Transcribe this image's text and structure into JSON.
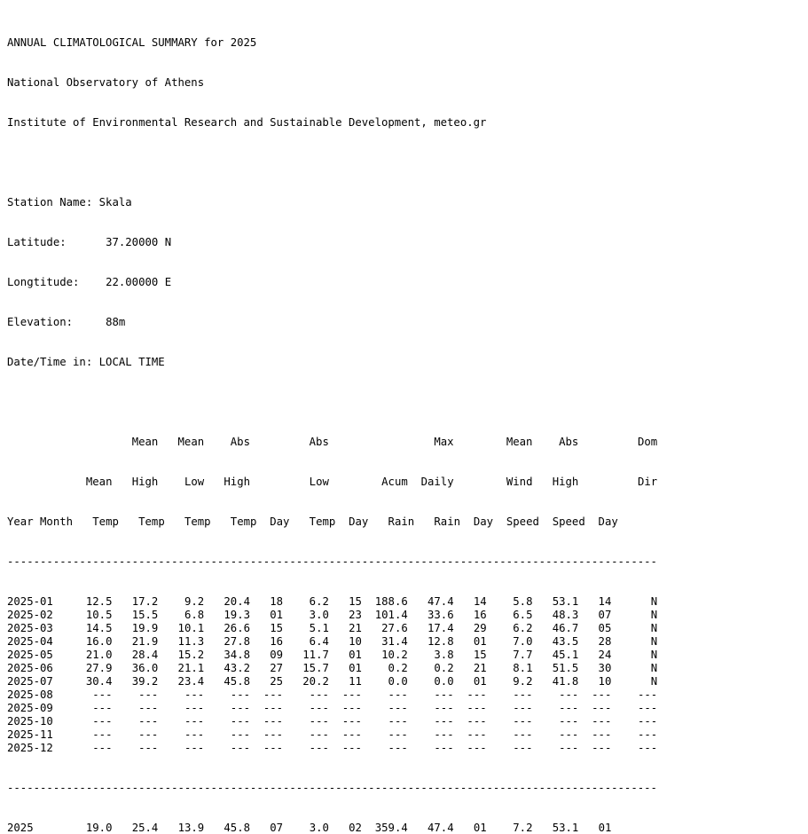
{
  "header": {
    "title": "ANNUAL CLIMATOLOGICAL SUMMARY for 2025",
    "org1": "National Observatory of Athens",
    "org2": "Institute of Environmental Research and Sustainable Development, meteo.gr"
  },
  "station": {
    "name": "Skala",
    "latitude": "37.20000 N",
    "longitude": "22.00000 E",
    "elevation": "88m",
    "datetime": "LOCAL TIME"
  },
  "station_labels": {
    "name": "Station Name:",
    "latitude": "Latitude:",
    "longitude": "Longtitude:",
    "elevation": "Elevation:",
    "datetime": "Date/Time in:"
  },
  "columns": [
    [
      "",
      "",
      "Year Month"
    ],
    [
      "",
      "Mean",
      "Temp"
    ],
    [
      "Mean",
      "High",
      "Temp"
    ],
    [
      "Mean",
      "Low",
      "Temp"
    ],
    [
      "Abs",
      "High",
      "Temp"
    ],
    [
      "",
      "",
      "Day"
    ],
    [
      "Abs",
      "Low",
      "Temp"
    ],
    [
      "",
      "",
      "Day"
    ],
    [
      "",
      "Acum",
      "Rain"
    ],
    [
      "Max",
      "Daily",
      "Rain"
    ],
    [
      "",
      "",
      "Day"
    ],
    [
      "Mean",
      "Wind",
      "Speed"
    ],
    [
      "Abs",
      "High",
      "Speed"
    ],
    [
      "",
      "",
      "Day"
    ],
    [
      "Dom",
      "Dir",
      ""
    ]
  ],
  "rows": [
    [
      "2025-01",
      "12.5",
      "17.2",
      "9.2",
      "20.4",
      "18",
      "6.2",
      "15",
      "188.6",
      "47.4",
      "14",
      "5.8",
      "53.1",
      "14",
      "N"
    ],
    [
      "2025-02",
      "10.5",
      "15.5",
      "6.8",
      "19.3",
      "01",
      "3.0",
      "23",
      "101.4",
      "33.6",
      "16",
      "6.5",
      "48.3",
      "07",
      "N"
    ],
    [
      "2025-03",
      "14.5",
      "19.9",
      "10.1",
      "26.6",
      "15",
      "5.1",
      "21",
      "27.6",
      "17.4",
      "29",
      "6.2",
      "46.7",
      "05",
      "N"
    ],
    [
      "2025-04",
      "16.0",
      "21.9",
      "11.3",
      "27.8",
      "16",
      "6.4",
      "10",
      "31.4",
      "12.8",
      "01",
      "7.0",
      "43.5",
      "28",
      "N"
    ],
    [
      "2025-05",
      "21.0",
      "28.4",
      "15.2",
      "34.8",
      "09",
      "11.7",
      "01",
      "10.2",
      "3.8",
      "15",
      "7.7",
      "45.1",
      "24",
      "N"
    ],
    [
      "2025-06",
      "27.9",
      "36.0",
      "21.1",
      "43.2",
      "27",
      "15.7",
      "01",
      "0.2",
      "0.2",
      "21",
      "8.1",
      "51.5",
      "30",
      "N"
    ],
    [
      "2025-07",
      "30.4",
      "39.2",
      "23.4",
      "45.8",
      "25",
      "20.2",
      "11",
      "0.0",
      "0.0",
      "01",
      "9.2",
      "41.8",
      "10",
      "N"
    ],
    [
      "2025-08",
      "---",
      "---",
      "---",
      "---",
      "---",
      "---",
      "---",
      "---",
      "---",
      "---",
      "---",
      "---",
      "---",
      "---"
    ],
    [
      "2025-09",
      "---",
      "---",
      "---",
      "---",
      "---",
      "---",
      "---",
      "---",
      "---",
      "---",
      "---",
      "---",
      "---",
      "---"
    ],
    [
      "2025-10",
      "---",
      "---",
      "---",
      "---",
      "---",
      "---",
      "---",
      "---",
      "---",
      "---",
      "---",
      "---",
      "---",
      "---"
    ],
    [
      "2025-11",
      "---",
      "---",
      "---",
      "---",
      "---",
      "---",
      "---",
      "---",
      "---",
      "---",
      "---",
      "---",
      "---",
      "---"
    ],
    [
      "2025-12",
      "---",
      "---",
      "---",
      "---",
      "---",
      "---",
      "---",
      "---",
      "---",
      "---",
      "---",
      "---",
      "---",
      "---"
    ]
  ],
  "annual": [
    "2025",
    "19.0",
    "25.4",
    "13.9",
    "45.8",
    "07",
    "3.0",
    "02",
    "359.4",
    "47.4",
    "01",
    "7.2",
    "53.1",
    "01",
    ""
  ]
}
